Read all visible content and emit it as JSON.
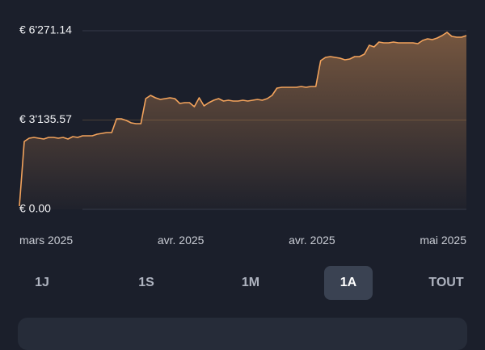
{
  "chart_data": {
    "type": "line",
    "color": "#f3a35c",
    "values": [
      113,
      2384,
      2497,
      2525,
      2497,
      2469,
      2525,
      2525,
      2497,
      2525,
      2469,
      2554,
      2525,
      2582,
      2582,
      2582,
      2639,
      2667,
      2696,
      2696,
      3178,
      3178,
      3121,
      3036,
      3008,
      3008,
      3888,
      4001,
      3916,
      3859,
      3888,
      3916,
      3888,
      3717,
      3746,
      3746,
      3604,
      3916,
      3632,
      3746,
      3831,
      3888,
      3802,
      3831,
      3802,
      3802,
      3831,
      3802,
      3831,
      3859,
      3831,
      3888,
      4001,
      4256,
      4285,
      4285,
      4285,
      4285,
      4313,
      4285,
      4313,
      4313,
      5221,
      5335,
      5363,
      5335,
      5306,
      5249,
      5278,
      5363,
      5363,
      5448,
      5760,
      5704,
      5874,
      5846,
      5846,
      5874,
      5846,
      5846,
      5846,
      5846,
      5817,
      5931,
      5987,
      5959,
      6016,
      6101,
      6214,
      6073,
      6044,
      6044,
      6101
    ],
    "ylim": [
      0,
      6271.14
    ],
    "yticks": [
      {
        "value": 0,
        "label": "€ 0.00"
      },
      {
        "value": 3135.57,
        "label": "€ 3'135.57"
      },
      {
        "value": 6271.14,
        "label": "€ 6'271.14"
      }
    ],
    "x_labels": [
      "mars 2025",
      "avr. 2025",
      "avr. 2025",
      "mai 2025"
    ],
    "grid": true
  },
  "range_buttons": [
    "1J",
    "1S",
    "1M",
    "1A",
    "TOUT"
  ],
  "selected_range": 3
}
